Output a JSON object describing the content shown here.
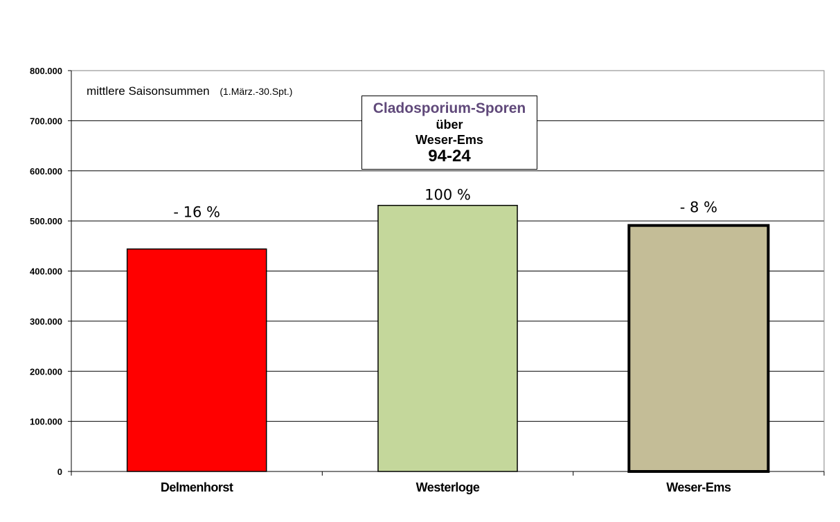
{
  "chart_data": {
    "type": "bar",
    "title_box": {
      "line1": "Cladosporium-Sporen",
      "line2": "über",
      "line3": "Weser-Ems",
      "line4": "94-24"
    },
    "subtitle": "mittlere Saisonsummen",
    "subtitle_note": "(1.März.-30.Spt.)",
    "categories": [
      "Delmenhorst",
      "Westerloge",
      "Weser-Ems"
    ],
    "values": [
      444000,
      531000,
      491000
    ],
    "bar_labels": [
      "-  16 %",
      "100 %",
      "-  8 %"
    ],
    "bar_colors": [
      "#ff0000",
      "#c4d79b",
      "#c4bd97"
    ],
    "ylim": [
      0,
      800000
    ],
    "y_ticks": [
      0,
      100000,
      200000,
      300000,
      400000,
      500000,
      600000,
      700000,
      800000
    ],
    "y_tick_labels": [
      "0",
      "100.000",
      "200.000",
      "300.000",
      "400.000",
      "500.000",
      "600.000",
      "700.000",
      "800.000"
    ],
    "grid": true,
    "plot_background": "#ffffff",
    "frame_color": "#808080"
  }
}
